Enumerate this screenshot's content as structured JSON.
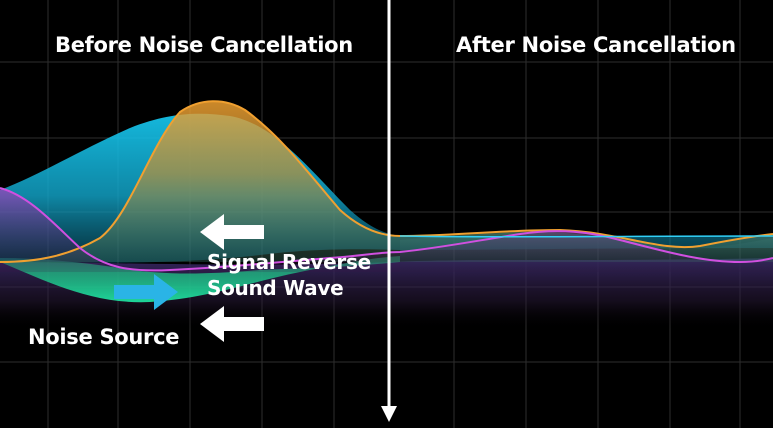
{
  "titles": {
    "before": "Before Noise Cancellation",
    "after": "After Noise Cancellation"
  },
  "labels": {
    "signal_reverse_line1": "Signal Reverse",
    "signal_reverse_line2": "Sound Wave",
    "noise_source": "Noise Source"
  },
  "colors": {
    "background": "#000000",
    "grid": "#2a2a2a",
    "cyan_wave": "#19c3ea",
    "orange_wave": "#e7982a",
    "magenta_wave": "#c040c8",
    "green_wave": "#1ec88a",
    "arrow_white": "#ffffff",
    "arrow_cyan": "#2ab4e6"
  },
  "icons": {
    "divider": "down-arrow-icon",
    "reverse_arrow_top": "left-arrow-icon",
    "reverse_arrow_bottom": "left-arrow-icon",
    "noise_arrow": "right-arrow-icon"
  }
}
